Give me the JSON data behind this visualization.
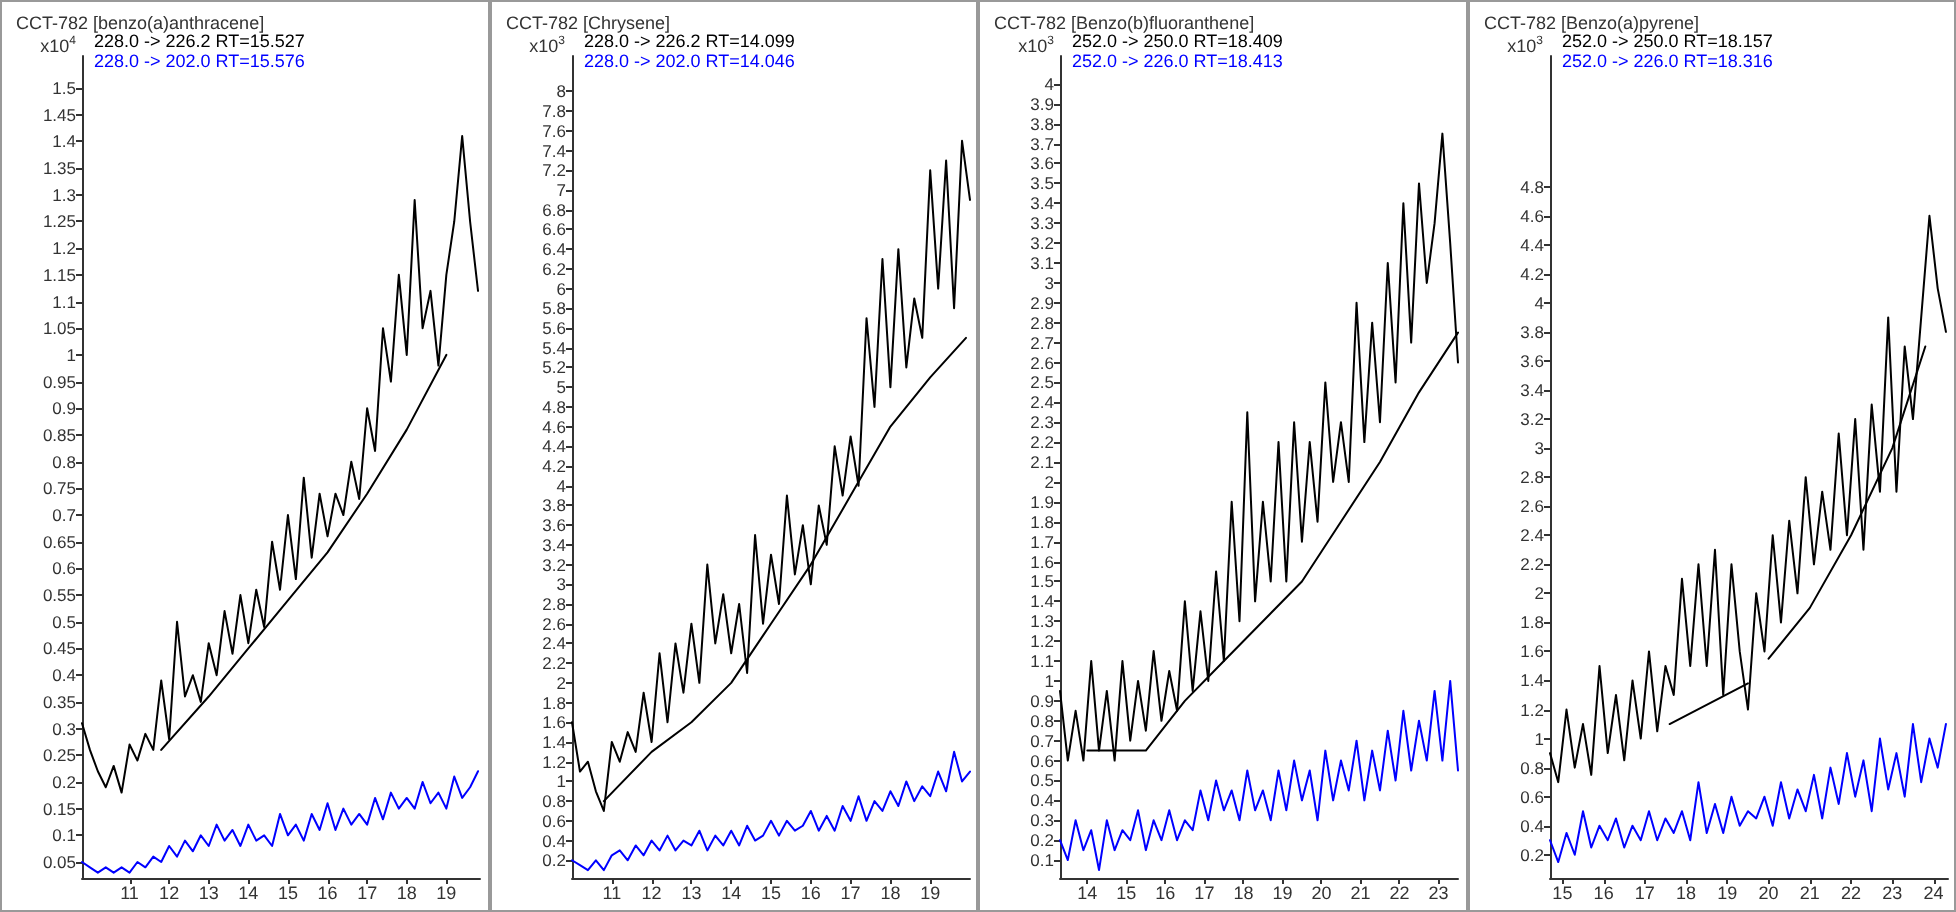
{
  "chart_data": [
    {
      "type": "line",
      "title": "CCT-782 [benzo(a)anthracene]",
      "ylabel": "x10$^{4}$",
      "grid": false,
      "legend": "top left",
      "marker": "none",
      "line_style": "solid",
      "xlim": [
        9.8,
        19.85
      ],
      "xticks": [
        11,
        12,
        13,
        14,
        15,
        16,
        17,
        18,
        19
      ],
      "ylim": [
        0.02,
        1.56
      ],
      "yticks": [
        0.05,
        0.1,
        0.15,
        0.2,
        0.25,
        0.3,
        0.35,
        0.4,
        0.45,
        0.5,
        0.55,
        0.6,
        0.65,
        0.7,
        0.75,
        0.8,
        0.85,
        0.9,
        0.95,
        1,
        1.05,
        1.1,
        1.15,
        1.2,
        1.25,
        1.3,
        1.35,
        1.4,
        1.45,
        1.5
      ],
      "x": [
        9.8,
        10.0,
        10.2,
        10.4,
        10.6,
        10.8,
        11.0,
        11.2,
        11.4,
        11.6,
        11.8,
        12.0,
        12.2,
        12.4,
        12.6,
        12.8,
        13.0,
        13.2,
        13.4,
        13.6,
        13.8,
        14.0,
        14.2,
        14.4,
        14.6,
        14.8,
        15.0,
        15.2,
        15.4,
        15.6,
        15.8,
        16.0,
        16.2,
        16.4,
        16.6,
        16.8,
        17.0,
        17.2,
        17.4,
        17.6,
        17.8,
        18.0,
        18.2,
        18.4,
        18.6,
        18.8,
        19.0,
        19.2,
        19.4,
        19.6,
        19.8
      ],
      "series": [
        {
          "name": "228.0 -> 226.2 RT=15.527",
          "color": "#000000",
          "values": [
            0.31,
            0.26,
            0.22,
            0.19,
            0.23,
            0.18,
            0.27,
            0.24,
            0.29,
            0.26,
            0.39,
            0.28,
            0.5,
            0.36,
            0.4,
            0.35,
            0.46,
            0.4,
            0.52,
            0.44,
            0.55,
            0.46,
            0.56,
            0.49,
            0.65,
            0.56,
            0.7,
            0.58,
            0.77,
            0.62,
            0.74,
            0.66,
            0.74,
            0.7,
            0.8,
            0.73,
            0.9,
            0.82,
            1.05,
            0.95,
            1.15,
            1.0,
            1.29,
            1.05,
            1.12,
            0.98,
            1.15,
            1.25,
            1.41,
            1.25,
            1.12
          ]
        },
        {
          "name": "228.0 -> 202.0 RT=15.576",
          "color": "#0000ff",
          "values": [
            0.05,
            0.04,
            0.03,
            0.04,
            0.03,
            0.04,
            0.03,
            0.05,
            0.04,
            0.06,
            0.05,
            0.08,
            0.06,
            0.09,
            0.07,
            0.1,
            0.08,
            0.12,
            0.09,
            0.11,
            0.08,
            0.12,
            0.09,
            0.1,
            0.08,
            0.14,
            0.1,
            0.12,
            0.09,
            0.14,
            0.11,
            0.16,
            0.11,
            0.15,
            0.12,
            0.14,
            0.12,
            0.17,
            0.13,
            0.18,
            0.15,
            0.17,
            0.15,
            0.2,
            0.16,
            0.18,
            0.15,
            0.21,
            0.17,
            0.19,
            0.22
          ]
        },
        {
          "color": "#000000",
          "x": [
            11.8,
            13,
            14,
            15,
            16,
            17,
            18,
            19
          ],
          "values": [
            0.26,
            0.36,
            0.45,
            0.54,
            0.63,
            0.74,
            0.86,
            1.0
          ]
        }
      ]
    },
    {
      "type": "line",
      "title": "CCT-782 [Chrysene]",
      "ylabel": "x10$^{3}$",
      "grid": false,
      "legend": "top left",
      "marker": "none",
      "line_style": "solid",
      "xlim": [
        10.0,
        20.0
      ],
      "xticks": [
        11,
        12,
        13,
        14,
        15,
        16,
        17,
        18,
        19
      ],
      "ylim": [
        0.02,
        8.36
      ],
      "yticks": [
        0.2,
        0.4,
        0.6,
        0.8,
        1,
        1.2,
        1.4,
        1.6,
        1.8,
        2,
        2.2,
        2.4,
        2.6,
        2.8,
        3,
        3.2,
        3.4,
        3.6,
        3.8,
        4,
        4.2,
        4.4,
        4.6,
        4.8,
        5,
        5.2,
        5.4,
        5.6,
        5.8,
        6,
        6.2,
        6.4,
        6.6,
        6.8,
        7,
        7.2,
        7.4,
        7.6,
        7.8,
        8
      ],
      "x": [
        10.0,
        10.2,
        10.4,
        10.6,
        10.8,
        11.0,
        11.2,
        11.4,
        11.6,
        11.8,
        12.0,
        12.2,
        12.4,
        12.6,
        12.8,
        13.0,
        13.2,
        13.4,
        13.6,
        13.8,
        14.0,
        14.2,
        14.4,
        14.6,
        14.8,
        15.0,
        15.2,
        15.4,
        15.6,
        15.8,
        16.0,
        16.2,
        16.4,
        16.6,
        16.8,
        17.0,
        17.2,
        17.4,
        17.6,
        17.8,
        18.0,
        18.2,
        18.4,
        18.6,
        18.8,
        19.0,
        19.2,
        19.4,
        19.6,
        19.8,
        20.0
      ],
      "series": [
        {
          "name": "228.0 -> 226.2 RT=14.099",
          "color": "#000000",
          "values": [
            1.6,
            1.1,
            1.2,
            0.9,
            0.7,
            1.4,
            1.2,
            1.5,
            1.3,
            1.9,
            1.4,
            2.3,
            1.6,
            2.4,
            1.9,
            2.6,
            2.0,
            3.2,
            2.4,
            2.9,
            2.3,
            2.8,
            2.1,
            3.5,
            2.6,
            3.3,
            2.8,
            3.9,
            3.1,
            3.6,
            3.0,
            3.8,
            3.4,
            4.4,
            3.9,
            4.5,
            4.0,
            5.7,
            4.8,
            6.3,
            5.0,
            6.4,
            5.2,
            5.9,
            5.5,
            7.2,
            6.0,
            7.3,
            5.8,
            7.5,
            6.9
          ]
        },
        {
          "name": "228.0 -> 202.0 RT=14.046",
          "color": "#0000ff",
          "values": [
            0.2,
            0.15,
            0.1,
            0.2,
            0.1,
            0.25,
            0.3,
            0.2,
            0.35,
            0.25,
            0.4,
            0.3,
            0.45,
            0.3,
            0.4,
            0.35,
            0.5,
            0.3,
            0.45,
            0.35,
            0.5,
            0.35,
            0.55,
            0.4,
            0.45,
            0.6,
            0.45,
            0.6,
            0.5,
            0.55,
            0.7,
            0.5,
            0.65,
            0.5,
            0.75,
            0.6,
            0.85,
            0.6,
            0.8,
            0.7,
            0.9,
            0.75,
            1.0,
            0.8,
            0.95,
            0.85,
            1.1,
            0.9,
            1.3,
            1.0,
            1.1
          ]
        },
        {
          "color": "#000000",
          "x": [
            10.8,
            12,
            13,
            14,
            15,
            16,
            17,
            18,
            19,
            19.9
          ],
          "values": [
            0.8,
            1.3,
            1.6,
            2.0,
            2.6,
            3.2,
            3.9,
            4.6,
            5.1,
            5.5
          ]
        }
      ]
    },
    {
      "type": "line",
      "title": "CCT-782 [Benzo(b)fluoranthene]",
      "ylabel": "x10$^{3}$",
      "grid": false,
      "legend": "top left",
      "marker": "none",
      "line_style": "solid",
      "xlim": [
        13.3,
        23.5
      ],
      "xticks": [
        14,
        15,
        16,
        17,
        18,
        19,
        20,
        21,
        22,
        23
      ],
      "ylim": [
        0.01,
        4.14
      ],
      "yticks": [
        0.1,
        0.2,
        0.3,
        0.4,
        0.5,
        0.6,
        0.7,
        0.8,
        0.9,
        1,
        1.1,
        1.2,
        1.3,
        1.4,
        1.5,
        1.6,
        1.7,
        1.8,
        1.9,
        2,
        2.1,
        2.2,
        2.3,
        2.4,
        2.5,
        2.6,
        2.7,
        2.8,
        2.9,
        3,
        3.1,
        3.2,
        3.3,
        3.4,
        3.5,
        3.6,
        3.7,
        3.8,
        3.9,
        4
      ],
      "x": [
        13.3,
        13.5,
        13.7,
        13.9,
        14.1,
        14.3,
        14.5,
        14.7,
        14.9,
        15.1,
        15.3,
        15.5,
        15.7,
        15.9,
        16.1,
        16.3,
        16.5,
        16.7,
        16.9,
        17.1,
        17.3,
        17.5,
        17.7,
        17.9,
        18.1,
        18.3,
        18.5,
        18.7,
        18.9,
        19.1,
        19.3,
        19.5,
        19.7,
        19.9,
        20.1,
        20.3,
        20.5,
        20.7,
        20.9,
        21.1,
        21.3,
        21.5,
        21.7,
        21.9,
        22.1,
        22.3,
        22.5,
        22.7,
        22.9,
        23.1,
        23.3,
        23.5
      ],
      "series": [
        {
          "name": "252.0 -> 250.0 RT=18.409",
          "color": "#000000",
          "values": [
            0.95,
            0.6,
            0.85,
            0.6,
            1.1,
            0.65,
            0.95,
            0.6,
            1.1,
            0.7,
            1.0,
            0.75,
            1.15,
            0.8,
            1.05,
            0.85,
            1.4,
            0.95,
            1.35,
            1.0,
            1.55,
            1.1,
            1.9,
            1.3,
            2.35,
            1.4,
            1.9,
            1.5,
            2.2,
            1.5,
            2.3,
            1.7,
            2.2,
            1.8,
            2.5,
            2.0,
            2.3,
            2.0,
            2.9,
            2.2,
            2.8,
            2.3,
            3.1,
            2.5,
            3.4,
            2.7,
            3.5,
            3.0,
            3.3,
            3.75,
            3.2,
            2.6
          ]
        },
        {
          "name": "252.0 -> 226.0 RT=18.413",
          "color": "#0000ff",
          "values": [
            0.2,
            0.1,
            0.3,
            0.15,
            0.25,
            0.05,
            0.3,
            0.15,
            0.25,
            0.2,
            0.35,
            0.15,
            0.3,
            0.2,
            0.35,
            0.2,
            0.3,
            0.25,
            0.45,
            0.3,
            0.5,
            0.35,
            0.45,
            0.3,
            0.55,
            0.35,
            0.45,
            0.3,
            0.55,
            0.35,
            0.6,
            0.4,
            0.55,
            0.3,
            0.65,
            0.4,
            0.6,
            0.45,
            0.7,
            0.4,
            0.65,
            0.45,
            0.75,
            0.5,
            0.85,
            0.55,
            0.8,
            0.6,
            0.95,
            0.6,
            1.0,
            0.55
          ]
        },
        {
          "color": "#000000",
          "x": [
            14,
            15.5,
            16.5,
            17.5,
            18.5,
            19.5,
            20.5,
            21.5,
            22.5,
            23.5
          ],
          "values": [
            0.65,
            0.65,
            0.9,
            1.1,
            1.3,
            1.5,
            1.8,
            2.1,
            2.45,
            2.75
          ]
        }
      ]
    },
    {
      "type": "line",
      "title": "CCT-782 [Benzo(a)pyrene]",
      "ylabel": "x10$^{3}$",
      "grid": false,
      "legend": "top left",
      "marker": "none",
      "line_style": "solid",
      "xlim": [
        14.7,
        24.35
      ],
      "xticks": [
        15,
        16,
        17,
        18,
        19,
        20,
        21,
        22,
        23,
        24
      ],
      "ylim": [
        0.04,
        5.7
      ],
      "yticks": [
        0.2,
        0.4,
        0.6,
        0.8,
        1,
        1.2,
        1.4,
        1.6,
        1.8,
        2,
        2.2,
        2.4,
        2.6,
        2.8,
        3,
        3.2,
        3.4,
        3.6,
        3.8,
        4,
        4.2,
        4.4,
        4.6,
        4.8
      ],
      "x": [
        14.7,
        14.9,
        15.1,
        15.3,
        15.5,
        15.7,
        15.9,
        16.1,
        16.3,
        16.5,
        16.7,
        16.9,
        17.1,
        17.3,
        17.5,
        17.7,
        17.9,
        18.1,
        18.3,
        18.5,
        18.7,
        18.9,
        19.1,
        19.3,
        19.5,
        19.7,
        19.9,
        20.1,
        20.3,
        20.5,
        20.7,
        20.9,
        21.1,
        21.3,
        21.5,
        21.7,
        21.9,
        22.1,
        22.3,
        22.5,
        22.7,
        22.9,
        23.1,
        23.3,
        23.5,
        23.7,
        23.9,
        24.1,
        24.3
      ],
      "series": [
        {
          "name": "252.0 -> 250.0 RT=18.157",
          "color": "#000000",
          "values": [
            0.9,
            0.7,
            1.2,
            0.8,
            1.1,
            0.75,
            1.5,
            0.9,
            1.3,
            0.85,
            1.4,
            1.0,
            1.6,
            1.05,
            1.5,
            1.3,
            2.1,
            1.5,
            2.2,
            1.5,
            2.3,
            1.3,
            2.2,
            1.6,
            1.2,
            2.0,
            1.6,
            2.4,
            1.8,
            2.5,
            2.0,
            2.8,
            2.2,
            2.7,
            2.3,
            3.1,
            2.4,
            3.2,
            2.3,
            3.3,
            2.7,
            3.9,
            2.7,
            3.7,
            3.2,
            3.9,
            4.6,
            4.1,
            3.8
          ]
        },
        {
          "name": "252.0 -> 226.0 RT=18.316",
          "color": "#0000ff",
          "values": [
            0.3,
            0.15,
            0.35,
            0.2,
            0.5,
            0.25,
            0.4,
            0.3,
            0.45,
            0.25,
            0.4,
            0.3,
            0.5,
            0.3,
            0.45,
            0.35,
            0.5,
            0.3,
            0.7,
            0.35,
            0.55,
            0.35,
            0.6,
            0.4,
            0.5,
            0.45,
            0.6,
            0.4,
            0.7,
            0.45,
            0.65,
            0.5,
            0.75,
            0.45,
            0.8,
            0.55,
            0.9,
            0.6,
            0.85,
            0.5,
            1.0,
            0.65,
            0.9,
            0.6,
            1.1,
            0.7,
            1.0,
            0.8,
            1.1
          ]
        },
        {
          "color": "#000000",
          "x": [
            17.6,
            19.5
          ],
          "values": [
            1.1,
            1.38
          ]
        },
        {
          "color": "#000000",
          "x": [
            20,
            21,
            22,
            23,
            23.8
          ],
          "values": [
            1.55,
            1.9,
            2.4,
            3.0,
            3.7
          ]
        }
      ]
    }
  ]
}
